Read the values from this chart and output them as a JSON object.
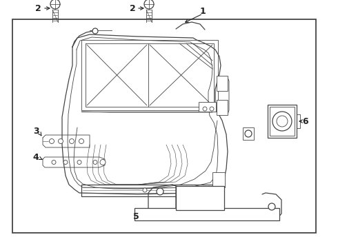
{
  "background_color": "#ffffff",
  "border_color": "#444444",
  "line_color": "#444444",
  "label_color": "#222222",
  "fig_width": 4.9,
  "fig_height": 3.6,
  "dpi": 100
}
